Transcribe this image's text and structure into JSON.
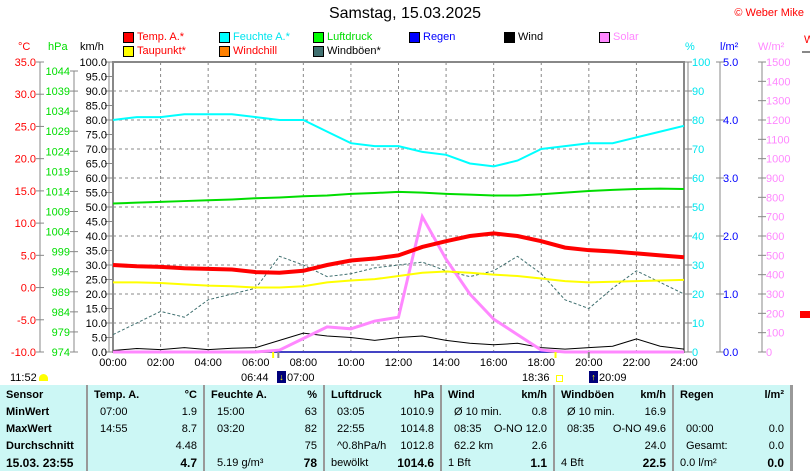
{
  "title": "Samstag, 15.03.2025",
  "copyright": "© Weber Mike",
  "legend": [
    {
      "label": "Temp. A.*",
      "color": "#ff0000",
      "text_color": "#ff0000"
    },
    {
      "label": "Feuchte A.*",
      "color": "#00ffff",
      "text_color": "#00e5ee"
    },
    {
      "label": "Luftdruck",
      "color": "#00ff00",
      "text_color": "#00dd00"
    },
    {
      "label": "Regen",
      "color": "#0000ff",
      "text_color": "#0000ff"
    },
    {
      "label": "Wind",
      "color": "#000000",
      "text_color": "#000000"
    },
    {
      "label": "Solar",
      "color": "#ff88ff",
      "text_color": "#ff88ff"
    },
    {
      "label": "Taupunkt*",
      "color": "#ffff00",
      "text_color": "#ff0000"
    },
    {
      "label": "Windchill",
      "color": "#ff8000",
      "text_color": "#ff0000"
    },
    {
      "label": "Windböen*",
      "color": "#407070",
      "text_color": "#000000"
    }
  ],
  "units": {
    "temp": "°C",
    "pressure": "hPa",
    "wind": "km/h",
    "humidity": "%",
    "rain": "l/m²",
    "solar": "W/m²",
    "cut": "W"
  },
  "chart_data": {
    "type": "line",
    "x": [
      0,
      1,
      2,
      3,
      4,
      5,
      6,
      7,
      8,
      9,
      10,
      11,
      12,
      13,
      14,
      15,
      16,
      17,
      18,
      19,
      20,
      21,
      22,
      23,
      24
    ],
    "x_ticks": [
      "00:00",
      "02:00",
      "04:00",
      "06:00",
      "08:00",
      "10:00",
      "12:00",
      "14:00",
      "16:00",
      "18:00",
      "20:00",
      "22:00",
      "24:00"
    ],
    "axes": {
      "temp": {
        "range": [
          -10,
          35
        ],
        "ticks": [
          "35.0",
          "30.0",
          "25.0",
          "20.0",
          "15.0",
          "10.0",
          "5.0",
          "0.0",
          "-5.0",
          "-10.0"
        ]
      },
      "pressure": {
        "range": [
          974,
          1044
        ],
        "ticks": [
          "1044",
          "1039",
          "1034",
          "1029",
          "1024",
          "1019",
          "1014",
          "1009",
          "1004",
          "999",
          "994",
          "989",
          "984",
          "979",
          "974"
        ]
      },
      "wind": {
        "range": [
          0,
          100
        ],
        "ticks": [
          "100.0",
          "95.0",
          "90.0",
          "85.0",
          "80.0",
          "75.0",
          "70.0",
          "65.0",
          "60.0",
          "55.0",
          "50.0",
          "45.0",
          "40.0",
          "35.0",
          "30.0",
          "25.0",
          "20.0",
          "15.0",
          "10.0",
          "5.0",
          "0.0"
        ]
      },
      "humidity": {
        "range": [
          0,
          100
        ],
        "ticks": [
          "100",
          "90",
          "80",
          "70",
          "60",
          "50",
          "40",
          "30",
          "20",
          "10",
          "0"
        ]
      },
      "rain": {
        "range": [
          0,
          5
        ],
        "ticks": [
          "5.0",
          "4.0",
          "3.0",
          "2.0",
          "1.0",
          "0.0"
        ]
      },
      "solar": {
        "range": [
          0,
          1500
        ],
        "ticks": [
          "1500",
          "1400",
          "1300",
          "1200",
          "1100",
          "1000",
          "900",
          "800",
          "700",
          "600",
          "500",
          "400",
          "300",
          "200",
          "100",
          "0"
        ]
      }
    },
    "series": [
      {
        "name": "Windböen*",
        "axis": "wind",
        "color": "#407070",
        "dash": true,
        "values": [
          6,
          10,
          14,
          12,
          18,
          20,
          22,
          33,
          30,
          26,
          27,
          29,
          30,
          31,
          28,
          26,
          28,
          33,
          27,
          18,
          15,
          22,
          28,
          24,
          20
        ]
      },
      {
        "name": "Wind",
        "axis": "wind",
        "color": "#000000",
        "values": [
          0.5,
          1.2,
          0.8,
          1.5,
          0.8,
          1.3,
          1.5,
          4.0,
          6.5,
          5.5,
          5.0,
          4.0,
          5.0,
          5.5,
          4.0,
          3.0,
          2.5,
          3.0,
          1.5,
          1.0,
          1.5,
          2.0,
          4.5,
          2.0,
          1.0
        ]
      },
      {
        "name": "Regen",
        "axis": "rain",
        "color": "#0000ff",
        "values": [
          0,
          0,
          0,
          0,
          0,
          0,
          0,
          0,
          0,
          0,
          0,
          0,
          0,
          0,
          0,
          0,
          0,
          0,
          0,
          0,
          0,
          0,
          0,
          0,
          0
        ]
      },
      {
        "name": "Solar",
        "axis": "solar",
        "color": "#ff88ff",
        "width": 3,
        "values": [
          0,
          0,
          0,
          0,
          0,
          0,
          0,
          10,
          70,
          130,
          120,
          160,
          180,
          700,
          480,
          300,
          170,
          90,
          10,
          0,
          0,
          0,
          0,
          0,
          0
        ]
      },
      {
        "name": "Luftdruck",
        "axis": "pressure",
        "color": "#00dd00",
        "width": 2,
        "values": [
          1011.0,
          1011.2,
          1011.4,
          1011.6,
          1011.8,
          1012.0,
          1012.3,
          1012.5,
          1012.8,
          1013.0,
          1013.4,
          1013.6,
          1013.9,
          1013.7,
          1013.4,
          1013.2,
          1013.0,
          1013.0,
          1013.3,
          1013.7,
          1014.1,
          1014.4,
          1014.6,
          1014.7,
          1014.6
        ]
      },
      {
        "name": "Feuchte A.*",
        "axis": "humidity",
        "color": "#00ffff",
        "width": 2,
        "values": [
          80,
          81,
          81,
          82,
          82,
          82,
          81,
          80,
          80,
          76,
          72,
          71,
          71,
          69,
          68,
          65,
          64,
          66,
          70,
          71,
          72,
          72,
          74,
          76,
          78
        ]
      },
      {
        "name": "Taupunkt*",
        "axis": "temp",
        "color": "#ffff00",
        "width": 2,
        "values": [
          0.8,
          0.8,
          0.7,
          0.5,
          0.3,
          0.2,
          0.0,
          0.0,
          0.2,
          0.8,
          1.1,
          1.3,
          1.8,
          2.3,
          2.5,
          2.3,
          2.0,
          1.8,
          1.4,
          1.0,
          0.8,
          0.9,
          1.0,
          1.1,
          1.2
        ]
      },
      {
        "name": "Temp. A.*",
        "axis": "temp",
        "color": "#ff0000",
        "width": 4,
        "values": [
          3.5,
          3.3,
          3.2,
          3.0,
          2.9,
          2.8,
          2.4,
          2.3,
          2.6,
          3.5,
          4.2,
          4.5,
          5.0,
          6.3,
          7.2,
          8.0,
          8.4,
          8.0,
          7.2,
          6.2,
          5.8,
          5.6,
          5.3,
          5.0,
          4.7
        ]
      }
    ],
    "grid": true
  },
  "sun_moon": {
    "moon_time": "11:52",
    "sunrise": "06:44",
    "sunrise2": "07:00",
    "sunset": "18:36",
    "sunset2": "20:09"
  },
  "table": {
    "sensor": {
      "header": "Sensor",
      "rows": [
        "MinWert",
        "MaxWert",
        "Durchschnitt",
        "15.03. 23:55"
      ]
    },
    "cols": [
      {
        "name": "temp",
        "header": "Temp. A.",
        "unit": "°C",
        "rows": [
          [
            "07:00",
            "1.9"
          ],
          [
            "14:55",
            "8.7"
          ],
          [
            "",
            "4.48"
          ],
          [
            "",
            "4.7"
          ]
        ]
      },
      {
        "name": "humidity",
        "header": "Feuchte A.",
        "unit": "%",
        "rows": [
          [
            "15:00",
            "63"
          ],
          [
            "03:20",
            "82"
          ],
          [
            "",
            "75"
          ],
          [
            "5.19 g/m³",
            "78"
          ]
        ]
      },
      {
        "name": "pressure",
        "header": "Luftdruck",
        "unit": "hPa",
        "rows": [
          [
            "03:05",
            "1010.9"
          ],
          [
            "22:55",
            "1014.8"
          ],
          [
            "^0.8hPa/h",
            "1012.8"
          ],
          [
            "bewölkt",
            "1014.6"
          ]
        ]
      },
      {
        "name": "wind",
        "header": "Wind",
        "unit": "km/h",
        "rows": [
          [
            "Ø 10 min.",
            "0.8"
          ],
          [
            "08:35",
            "O-NO 12.0"
          ],
          [
            "62.2 km",
            "2.6"
          ],
          [
            "1 Bft",
            "1.1"
          ]
        ]
      },
      {
        "name": "gust",
        "header": "Windböen",
        "unit": "km/h",
        "rows": [
          [
            "Ø 10 min.",
            "16.9"
          ],
          [
            "08:35",
            "O-NO 49.6"
          ],
          [
            "",
            "24.0"
          ],
          [
            "4 Bft",
            "22.5"
          ]
        ]
      },
      {
        "name": "rain",
        "header": "Regen",
        "unit": "l/m²",
        "rows": [
          [
            "",
            ""
          ],
          [
            "00:00",
            "0.0"
          ],
          [
            "Gesamt:",
            "0.0"
          ],
          [
            "0.0 l/m²",
            "0.0"
          ]
        ]
      }
    ]
  }
}
